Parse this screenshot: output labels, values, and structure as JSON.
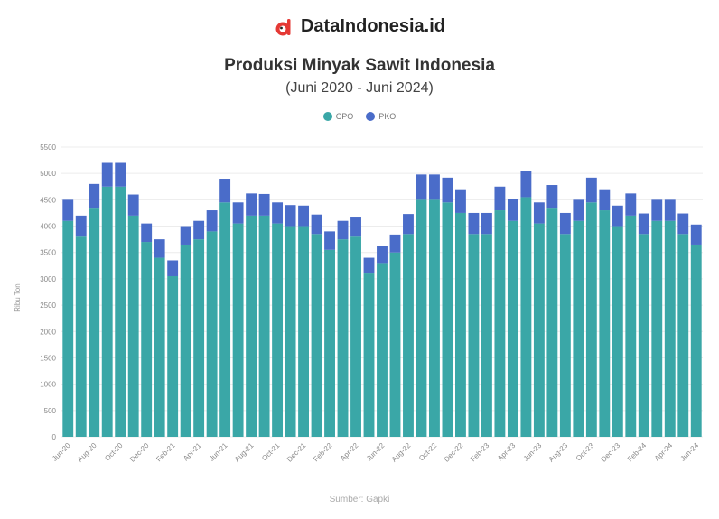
{
  "brand": {
    "name": "DataIndonesia.id",
    "icon": "dataindonesia-logo-icon",
    "color": "#e53935"
  },
  "chart_data": {
    "type": "bar",
    "stacked": true,
    "title": "Produksi Minyak Sawit Indonesia",
    "subtitle": "(Juni 2020 - Juni 2024)",
    "ylabel": "Ribu Ton",
    "source": "Sumber: Gapki",
    "ylim": [
      0,
      5500
    ],
    "yticks": [
      0,
      500,
      1000,
      1500,
      2000,
      2500,
      3000,
      3500,
      4000,
      4500,
      5000,
      5500
    ],
    "grid": true,
    "legend_position": "top-center",
    "categories": [
      "Jun-20",
      "Jul-20",
      "Aug-20",
      "Sep-20",
      "Oct-20",
      "Nov-20",
      "Dec-20",
      "Jan-21",
      "Feb-21",
      "Mar-21",
      "Apr-21",
      "May-21",
      "Jun-21",
      "Jul-21",
      "Aug-21",
      "Sep-21",
      "Oct-21",
      "Nov-21",
      "Dec-21",
      "Jan-22",
      "Feb-22",
      "Mar-22",
      "Apr-22",
      "May-22",
      "Jun-22",
      "Jul-22",
      "Aug-22",
      "Sep-22",
      "Oct-22",
      "Nov-22",
      "Dec-22",
      "Jan-23",
      "Feb-23",
      "Mar-23",
      "Apr-23",
      "May-23",
      "Jun-23",
      "Jul-23",
      "Aug-23",
      "Sep-23",
      "Oct-23",
      "Nov-23",
      "Dec-23",
      "Jan-24",
      "Feb-24",
      "Mar-24",
      "Apr-24",
      "May-24",
      "Jun-24"
    ],
    "xtick_labels": [
      "Jun-20",
      "",
      "Aug-20",
      "",
      "Oct-20",
      "",
      "Dec-20",
      "",
      "Feb-21",
      "",
      "Apr-21",
      "",
      "Jun-21",
      "",
      "Aug-21",
      "",
      "Oct-21",
      "",
      "Dec-21",
      "",
      "Feb-22",
      "",
      "Apr-22",
      "",
      "Jun-22",
      "",
      "Aug-22",
      "",
      "Oct-22",
      "",
      "Dec-22",
      "",
      "Feb-23",
      "",
      "Apr-23",
      "",
      "Jun-23",
      "",
      "Aug-23",
      "",
      "Oct-23",
      "",
      "Dec-23",
      "",
      "Feb-24",
      "",
      "Apr-24",
      "",
      "Jun-24"
    ],
    "series": [
      {
        "name": "CPO",
        "color": "#3aa7a7",
        "values": [
          4100,
          3800,
          4350,
          4750,
          4750,
          4200,
          3700,
          3400,
          3050,
          3650,
          3750,
          3900,
          4450,
          4050,
          4200,
          4200,
          4050,
          4000,
          4000,
          3850,
          3550,
          3750,
          3800,
          3100,
          3300,
          3500,
          3850,
          4500,
          4500,
          4450,
          4250,
          3850,
          3850,
          4300,
          4100,
          4550,
          4050,
          4350,
          3850,
          4100,
          4450,
          4300,
          4000,
          4200,
          3850,
          4100,
          4100,
          3850,
          3650
        ]
      },
      {
        "name": "PKO",
        "color": "#4a6cc9",
        "values": [
          400,
          400,
          450,
          450,
          450,
          400,
          350,
          350,
          300,
          350,
          350,
          400,
          450,
          400,
          420,
          410,
          400,
          400,
          390,
          370,
          350,
          350,
          380,
          300,
          320,
          340,
          380,
          480,
          480,
          470,
          450,
          400,
          400,
          450,
          420,
          500,
          400,
          430,
          400,
          400,
          470,
          400,
          390,
          420,
          390,
          400,
          400,
          390,
          380
        ]
      }
    ]
  }
}
